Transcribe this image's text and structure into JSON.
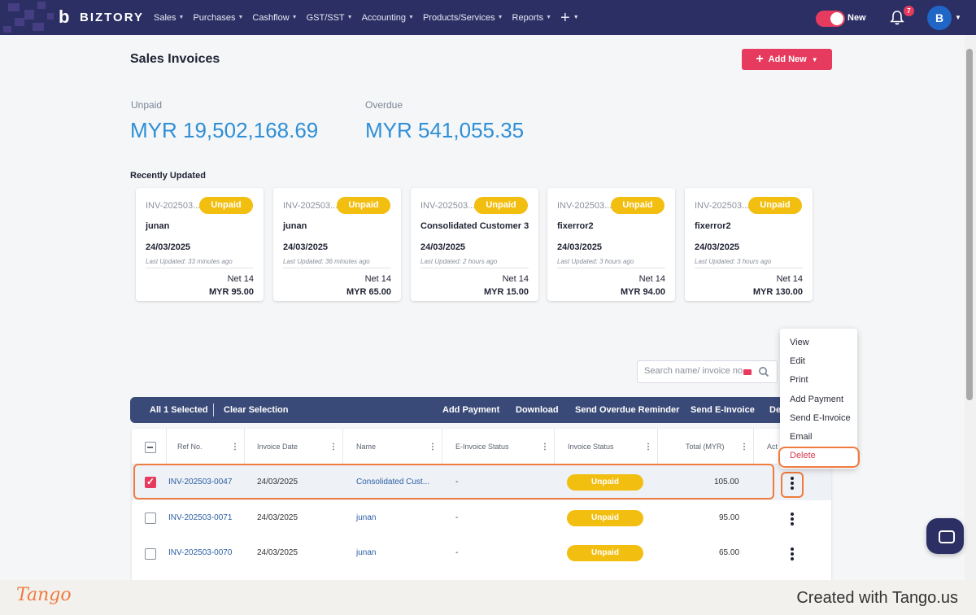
{
  "app": {
    "brand": "BIZTORY",
    "nav": [
      "Sales",
      "Purchases",
      "Cashflow",
      "GST/SST",
      "Accounting",
      "Products/Services",
      "Reports"
    ],
    "toggle_label": "New",
    "notification_count": "7",
    "avatar_initial": "B"
  },
  "page": {
    "title": "Sales Invoices",
    "add_button": "Add New"
  },
  "summary": {
    "unpaid_label": "Unpaid",
    "unpaid_value": "MYR 19,502,168.69",
    "overdue_label": "Overdue",
    "overdue_value": "MYR 541,055.35"
  },
  "recent": {
    "title": "Recently Updated",
    "cards": [
      {
        "ref": "INV-202503...",
        "status": "Unpaid",
        "name": "junan",
        "date": "24/03/2025",
        "updated": "Last Updated: 33 minutes ago",
        "terms": "Net 14",
        "amount": "MYR 95.00"
      },
      {
        "ref": "INV-202503...",
        "status": "Unpaid",
        "name": "junan",
        "date": "24/03/2025",
        "updated": "Last Updated: 36 minutes ago",
        "terms": "Net 14",
        "amount": "MYR 65.00"
      },
      {
        "ref": "INV-202503...",
        "status": "Unpaid",
        "name": "Consolidated Customer 3",
        "date": "24/03/2025",
        "updated": "Last Updated: 2 hours ago",
        "terms": "Net 14",
        "amount": "MYR 15.00"
      },
      {
        "ref": "INV-202503...",
        "status": "Unpaid",
        "name": "fixerror2",
        "date": "24/03/2025",
        "updated": "Last Updated: 3 hours ago",
        "terms": "Net 14",
        "amount": "MYR 94.00"
      },
      {
        "ref": "INV-202503...",
        "status": "Unpaid",
        "name": "fixerror2",
        "date": "24/03/2025",
        "updated": "Last Updated: 3 hours ago",
        "terms": "Net 14",
        "amount": "MYR 130.00"
      }
    ]
  },
  "search": {
    "placeholder": "Search name/ invoice no."
  },
  "selection_bar": {
    "selected": "All 1 Selected",
    "clear": "Clear Selection",
    "actions": [
      "Add Payment",
      "Download",
      "Send Overdue Reminder",
      "Send E-Invoice",
      "De"
    ]
  },
  "table": {
    "columns": [
      "Ref No.",
      "Invoice Date",
      "Name",
      "E-Invoice Status",
      "Invoice Status",
      "Total (MYR)",
      "Act"
    ],
    "rows": [
      {
        "ref": "INV-202503-0047",
        "date": "24/03/2025",
        "name": "Consolidated Cust...",
        "einvoice": "-",
        "status": "Unpaid",
        "total": "105.00",
        "checked": true
      },
      {
        "ref": "INV-202503-0071",
        "date": "24/03/2025",
        "name": "junan",
        "einvoice": "-",
        "status": "Unpaid",
        "total": "95.00",
        "checked": false
      },
      {
        "ref": "INV-202503-0070",
        "date": "24/03/2025",
        "name": "junan",
        "einvoice": "-",
        "status": "Unpaid",
        "total": "65.00",
        "checked": false
      }
    ]
  },
  "context_menu": [
    "View",
    "Edit",
    "Print",
    "Add Payment",
    "Send E-Invoice",
    "Email",
    "Delete"
  ],
  "footer": {
    "logo": "Tango",
    "text": "Created with Tango.us"
  },
  "colors": {
    "nav_bg": "#2c2f63",
    "accent": "#e63b5f",
    "unpaid": "#f2be10",
    "amount_blue": "#2f8fd6",
    "highlight": "#f07b3f"
  }
}
